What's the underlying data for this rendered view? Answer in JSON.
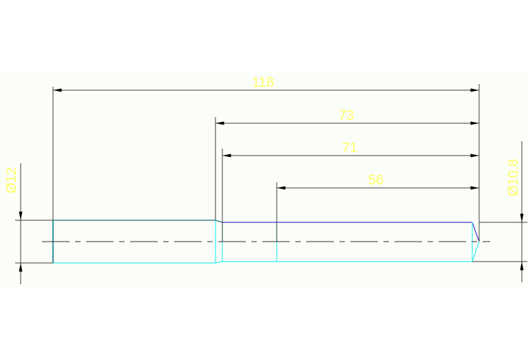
{
  "drawing": {
    "dimensions": {
      "overall_length": "118",
      "length_a": "73",
      "length_b": "71",
      "length_c": "56",
      "left_diameter": "Ø12",
      "right_diameter": "Ø10.8"
    },
    "colors": {
      "dimension_text": "#ffff66",
      "dimension_line": "#3a3a3a",
      "part_edge_cyan": "#33f0f0",
      "part_edge_teal": "#1f6f73",
      "part_edge_blue": "#4433cc",
      "centerline": "#555555"
    }
  }
}
